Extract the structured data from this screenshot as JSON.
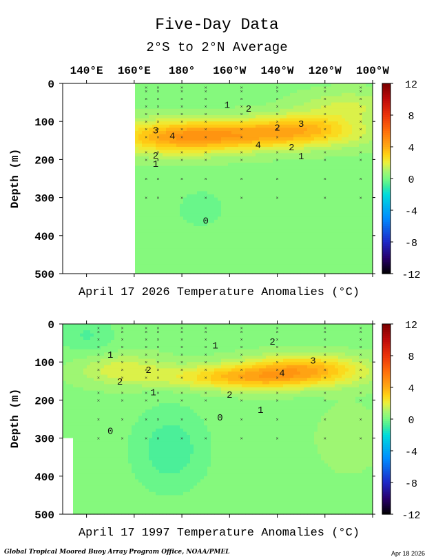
{
  "title": "Five-Day Data",
  "subtitle": "2°S to 2°N Average",
  "footer_left": "Global Tropical Moored Buoy Array Program Office, NOAA/PMEL",
  "footer_right": "Apr 18 2026",
  "colors": {
    "background": "#ffffff",
    "missing": "#ffffff",
    "contour_line": "#4a4a4a",
    "zero_line": "#2f4f3f",
    "marker": "#333333"
  },
  "chart_data": [
    {
      "type": "heatmap",
      "name": "panel-2026",
      "caption": "April 17 2026 Temperature Anomalies (°C)",
      "ylabel": "Depth (m)",
      "xlim": [
        130,
        260
      ],
      "ylim": [
        500,
        0
      ],
      "x_ticks": [
        {
          "value": 140,
          "label": "140°E"
        },
        {
          "value": 160,
          "label": "160°E"
        },
        {
          "value": 180,
          "label": "180°"
        },
        {
          "value": 200,
          "label": "160°W"
        },
        {
          "value": 220,
          "label": "140°W"
        },
        {
          "value": 240,
          "label": "120°W"
        },
        {
          "value": 260,
          "label": "100°W"
        }
      ],
      "y_ticks": [
        0,
        100,
        200,
        300,
        400,
        500
      ],
      "missing_region": {
        "lon_max": 160,
        "description": "no data west of 160°E"
      },
      "anomaly_features": [
        {
          "lon": 208,
          "depth": 135,
          "amplitude": 3.4,
          "lon_width": 42,
          "depth_width": 38
        },
        {
          "lon": 176,
          "depth": 145,
          "amplitude": 2.3,
          "lon_width": 26,
          "depth_width": 45
        },
        {
          "lon": 232,
          "depth": 110,
          "amplitude": 1.6,
          "lon_width": 20,
          "depth_width": 35
        },
        {
          "lon": 250,
          "depth": 60,
          "amplitude": 1.2,
          "lon_width": 20,
          "depth_width": 40
        },
        {
          "lon": 188,
          "depth": 330,
          "amplitude": -0.6,
          "lon_width": 12,
          "depth_width": 60
        }
      ],
      "contour_labels": [
        {
          "text": "1",
          "lon": 199,
          "depth": 55
        },
        {
          "text": "2",
          "lon": 208,
          "depth": 65
        },
        {
          "text": "3",
          "lon": 169,
          "depth": 122
        },
        {
          "text": "4",
          "lon": 176,
          "depth": 137
        },
        {
          "text": "2",
          "lon": 220,
          "depth": 115
        },
        {
          "text": "3",
          "lon": 230,
          "depth": 105
        },
        {
          "text": "4",
          "lon": 212,
          "depth": 160
        },
        {
          "text": "2",
          "lon": 226,
          "depth": 167
        },
        {
          "text": "1",
          "lon": 230,
          "depth": 190
        },
        {
          "text": "2",
          "lon": 169,
          "depth": 188
        },
        {
          "text": "1",
          "lon": 169,
          "depth": 210
        },
        {
          "text": "0",
          "lon": 190,
          "depth": 360
        }
      ],
      "buoy_columns": [
        165,
        170,
        180,
        190,
        205,
        220,
        240,
        255
      ]
    },
    {
      "type": "heatmap",
      "name": "panel-1997",
      "caption": "April 17 1997 Temperature Anomalies (°C)",
      "ylabel": "Depth (m)",
      "xlim": [
        130,
        260
      ],
      "ylim": [
        500,
        0
      ],
      "x_ticks": [
        {
          "value": 140,
          "label": "140°E"
        },
        {
          "value": 160,
          "label": "160°E"
        },
        {
          "value": 180,
          "label": "180°"
        },
        {
          "value": 200,
          "label": "160°W"
        },
        {
          "value": 220,
          "label": "140°W"
        },
        {
          "value": 240,
          "label": "120°W"
        },
        {
          "value": 260,
          "label": "100°W"
        }
      ],
      "y_ticks": [
        0,
        100,
        200,
        300,
        400,
        500
      ],
      "missing_region": {
        "lon_max": 135,
        "depth_min": 300,
        "description": "no data at far west below 300 m"
      },
      "anomaly_features": [
        {
          "lon": 212,
          "depth": 140,
          "amplitude": 3.6,
          "lon_width": 36,
          "depth_width": 32
        },
        {
          "lon": 232,
          "depth": 110,
          "amplitude": 2.4,
          "lon_width": 24,
          "depth_width": 32
        },
        {
          "lon": 155,
          "depth": 120,
          "amplitude": 1.4,
          "lon_width": 18,
          "depth_width": 40
        },
        {
          "lon": 175,
          "depth": 330,
          "amplitude": -1.2,
          "lon_width": 16,
          "depth_width": 110
        },
        {
          "lon": 140,
          "depth": 30,
          "amplitude": -0.9,
          "lon_width": 12,
          "depth_width": 50
        },
        {
          "lon": 250,
          "depth": 300,
          "amplitude": 0.6,
          "lon_width": 12,
          "depth_width": 80
        }
      ],
      "contour_labels": [
        {
          "text": "1",
          "lon": 150,
          "depth": 80
        },
        {
          "text": "2",
          "lon": 166,
          "depth": 120
        },
        {
          "text": "2",
          "lon": 154,
          "depth": 150
        },
        {
          "text": "1",
          "lon": 168,
          "depth": 178
        },
        {
          "text": "1",
          "lon": 194,
          "depth": 55
        },
        {
          "text": "2",
          "lon": 218,
          "depth": 45
        },
        {
          "text": "3",
          "lon": 235,
          "depth": 95
        },
        {
          "text": "4",
          "lon": 222,
          "depth": 128
        },
        {
          "text": "2",
          "lon": 200,
          "depth": 185
        },
        {
          "text": "1",
          "lon": 213,
          "depth": 225
        },
        {
          "text": "0",
          "lon": 196,
          "depth": 245
        },
        {
          "text": "0",
          "lon": 150,
          "depth": 280
        }
      ],
      "buoy_columns": [
        145,
        155,
        165,
        170,
        180,
        190,
        205,
        220,
        240,
        255
      ]
    }
  ],
  "colorbar": {
    "min": -12,
    "max": 12,
    "ticks": [
      12,
      8,
      4,
      0,
      -4,
      -8,
      -12
    ]
  }
}
